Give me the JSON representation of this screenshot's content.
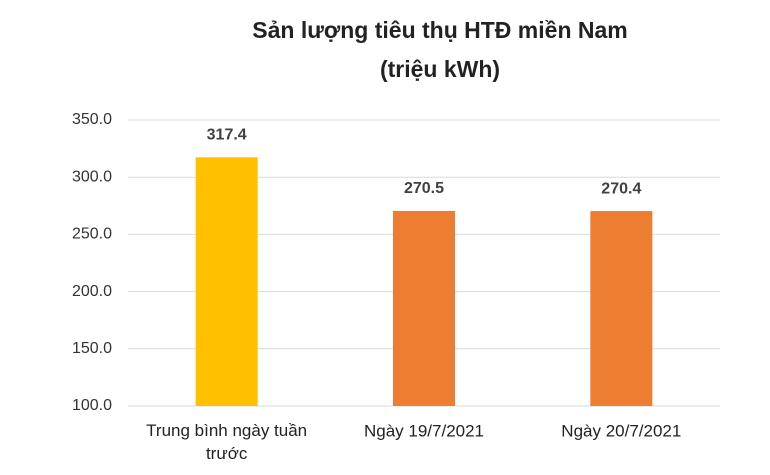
{
  "chart_data": {
    "type": "bar",
    "title": "Sản lượng tiêu thụ HTĐ miền Nam",
    "subtitle": "(triệu kWh)",
    "categories": [
      "Trung bình ngày tuần trước",
      "Ngày 19/7/2021",
      "Ngày 20/7/2021"
    ],
    "values": [
      317.4,
      270.5,
      270.4
    ],
    "colors": [
      "#ffc000",
      "#ed7d31",
      "#ed7d31"
    ],
    "ylim": [
      100,
      350
    ],
    "yticks": [
      {
        "value": 100,
        "label": "100.0"
      },
      {
        "value": 150,
        "label": "150.0"
      },
      {
        "value": 200,
        "label": "200.0"
      },
      {
        "value": 250,
        "label": "250.0"
      },
      {
        "value": 300,
        "label": "300.0"
      },
      {
        "value": 350,
        "label": "350.0"
      }
    ],
    "grid": true
  }
}
